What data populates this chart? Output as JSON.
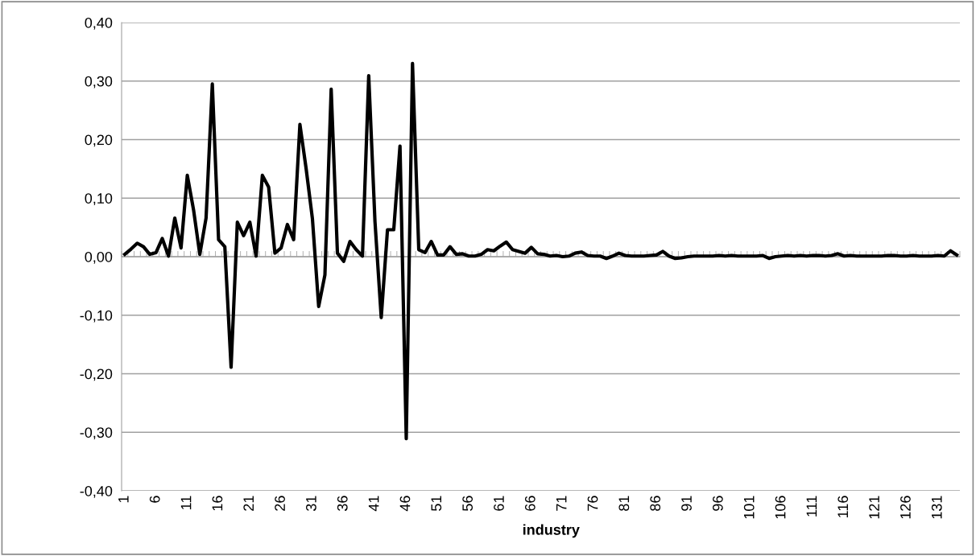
{
  "chart_data": {
    "type": "line",
    "xlabel": "industry",
    "categories": [
      "1",
      null,
      null,
      null,
      null,
      "6",
      null,
      null,
      null,
      null,
      "11",
      null,
      null,
      null,
      null,
      "16",
      null,
      null,
      null,
      null,
      "21",
      null,
      null,
      null,
      null,
      "26",
      null,
      null,
      null,
      null,
      "31",
      null,
      null,
      null,
      null,
      "36",
      null,
      null,
      null,
      null,
      "41",
      null,
      null,
      null,
      null,
      "46",
      null,
      null,
      null,
      null,
      "51",
      null,
      null,
      null,
      null,
      "56",
      null,
      null,
      null,
      null,
      "61",
      null,
      null,
      null,
      null,
      "66",
      null,
      null,
      null,
      null,
      "71",
      null,
      null,
      null,
      null,
      "76",
      null,
      null,
      null,
      null,
      "81",
      null,
      null,
      null,
      null,
      "86",
      null,
      null,
      null,
      null,
      "91",
      null,
      null,
      null,
      null,
      "96",
      null,
      null,
      null,
      null,
      "101",
      null,
      null,
      null,
      null,
      "106",
      null,
      null,
      null,
      null,
      "111",
      null,
      null,
      null,
      null,
      "116",
      null,
      null,
      null,
      null,
      "121",
      null,
      null,
      null,
      null,
      "126",
      null,
      null,
      null,
      null,
      "131",
      null,
      null,
      null
    ],
    "series": [
      {
        "color": "#000000",
        "values": [
          0.004,
          0.013,
          0.023,
          0.017,
          0.004,
          0.007,
          0.031,
          0.001,
          0.066,
          0.015,
          0.139,
          0.08,
          0.004,
          0.066,
          0.295,
          0.029,
          0.017,
          -0.189,
          0.059,
          0.036,
          0.059,
          0.001,
          0.139,
          0.119,
          0.006,
          0.015,
          0.055,
          0.029,
          0.226,
          0.15,
          0.065,
          -0.085,
          -0.031,
          0.286,
          0.006,
          -0.008,
          0.026,
          0.012,
          0.001,
          0.309,
          0.06,
          -0.104,
          0.046,
          0.046,
          0.189,
          -0.311,
          0.33,
          0.012,
          0.007,
          0.026,
          0.003,
          0.003,
          0.017,
          0.004,
          0.005,
          0.001,
          0.001,
          0.004,
          0.012,
          0.01,
          0.018,
          0.025,
          0.012,
          0.009,
          0.006,
          0.016,
          0.005,
          0.004,
          0.001,
          0.002,
          0.0,
          0.001,
          0.006,
          0.008,
          0.002,
          0.001,
          0.001,
          -0.003,
          0.001,
          0.006,
          0.002,
          0.001,
          0.001,
          0.001,
          0.002,
          0.003,
          0.009,
          0.001,
          -0.003,
          -0.002,
          0.0,
          0.001,
          0.001,
          0.001,
          0.001,
          0.002,
          0.001,
          0.002,
          0.001,
          0.001,
          0.001,
          0.001,
          0.002,
          -0.003,
          0.0,
          0.001,
          0.002,
          0.001,
          0.002,
          0.001,
          0.002,
          0.002,
          0.001,
          0.002,
          0.005,
          0.001,
          0.002,
          0.001,
          0.001,
          0.001,
          0.001,
          0.001,
          0.002,
          0.002,
          0.001,
          0.001,
          0.002,
          0.001,
          0.001,
          0.001,
          0.002,
          0.001,
          0.01,
          0.003
        ]
      }
    ],
    "ylim": [
      -0.4,
      0.4
    ],
    "yticks": [
      {
        "value": -0.4,
        "label": "-0,40"
      },
      {
        "value": -0.3,
        "label": "-0,30"
      },
      {
        "value": -0.2,
        "label": "-0,20"
      },
      {
        "value": -0.1,
        "label": "-0,10"
      },
      {
        "value": 0,
        "label": "0,00"
      },
      {
        "value": 0.1,
        "label": "0,10"
      },
      {
        "value": 0.2,
        "label": "0,20"
      },
      {
        "value": 0.3,
        "label": "0,30"
      },
      {
        "value": 0.4,
        "label": "0,40"
      }
    ],
    "grid": "y",
    "marker": "none",
    "line_style": "solid",
    "legend": false
  }
}
